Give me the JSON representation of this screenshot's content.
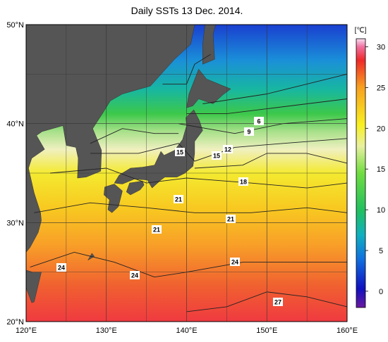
{
  "title": "Daily SSTs 13 Dec. 2014.",
  "map": {
    "lon_ticks": [
      {
        "value": 120,
        "label": "120°E"
      },
      {
        "value": 130,
        "label": "130°E"
      },
      {
        "value": 140,
        "label": "140°E"
      },
      {
        "value": 150,
        "label": "150°E"
      },
      {
        "value": 160,
        "label": "160°E"
      }
    ],
    "lat_ticks": [
      {
        "value": 20,
        "label": "20°N"
      },
      {
        "value": 30,
        "label": "30°N"
      },
      {
        "value": 40,
        "label": "40°N"
      },
      {
        "value": 50,
        "label": "50°N"
      }
    ],
    "contour_labels": [
      6,
      9,
      12,
      15,
      15,
      18,
      21,
      21,
      21,
      24,
      24,
      24,
      27
    ]
  },
  "colorbar": {
    "unit": "[℃]",
    "range": [
      -2,
      31
    ],
    "ticks": [
      0,
      5,
      10,
      15,
      20,
      25,
      30
    ]
  }
}
